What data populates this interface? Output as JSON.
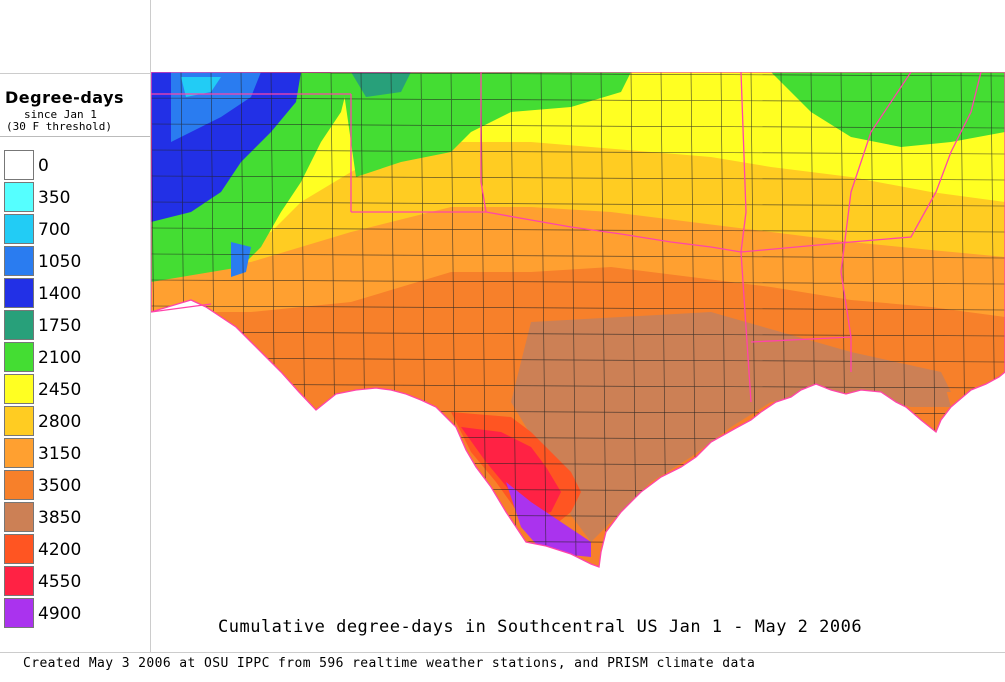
{
  "legend": {
    "title": "Degree-days",
    "subtitle_line1": "since Jan 1",
    "subtitle_line2": "(30 F threshold)",
    "bins": [
      {
        "label": "0",
        "color": "#ffffff"
      },
      {
        "label": "350",
        "color": "#55ffff"
      },
      {
        "label": "700",
        "color": "#22ccf5"
      },
      {
        "label": "1050",
        "color": "#2a7cf0"
      },
      {
        "label": "1400",
        "color": "#2230e6"
      },
      {
        "label": "1750",
        "color": "#28a07a"
      },
      {
        "label": "2100",
        "color": "#44dd33"
      },
      {
        "label": "2450",
        "color": "#ffff22"
      },
      {
        "label": "2800",
        "color": "#ffcc22"
      },
      {
        "label": "3150",
        "color": "#ffa030"
      },
      {
        "label": "3500",
        "color": "#f7802a"
      },
      {
        "label": "3850",
        "color": "#cc8055"
      },
      {
        "label": "4200",
        "color": "#ff5522"
      },
      {
        "label": "4550",
        "color": "#ff2244"
      },
      {
        "label": "4900",
        "color": "#aa33ee"
      }
    ]
  },
  "map": {
    "title": "Cumulative degree-days in Southcentral US Jan 1 - May 2 2006",
    "credit": "Created May 3 2006 at OSU IPPC from 596 realtime weather stations, and PRISM climate data",
    "state_border_color": "#ff44aa",
    "county_border_color": "#222222"
  }
}
